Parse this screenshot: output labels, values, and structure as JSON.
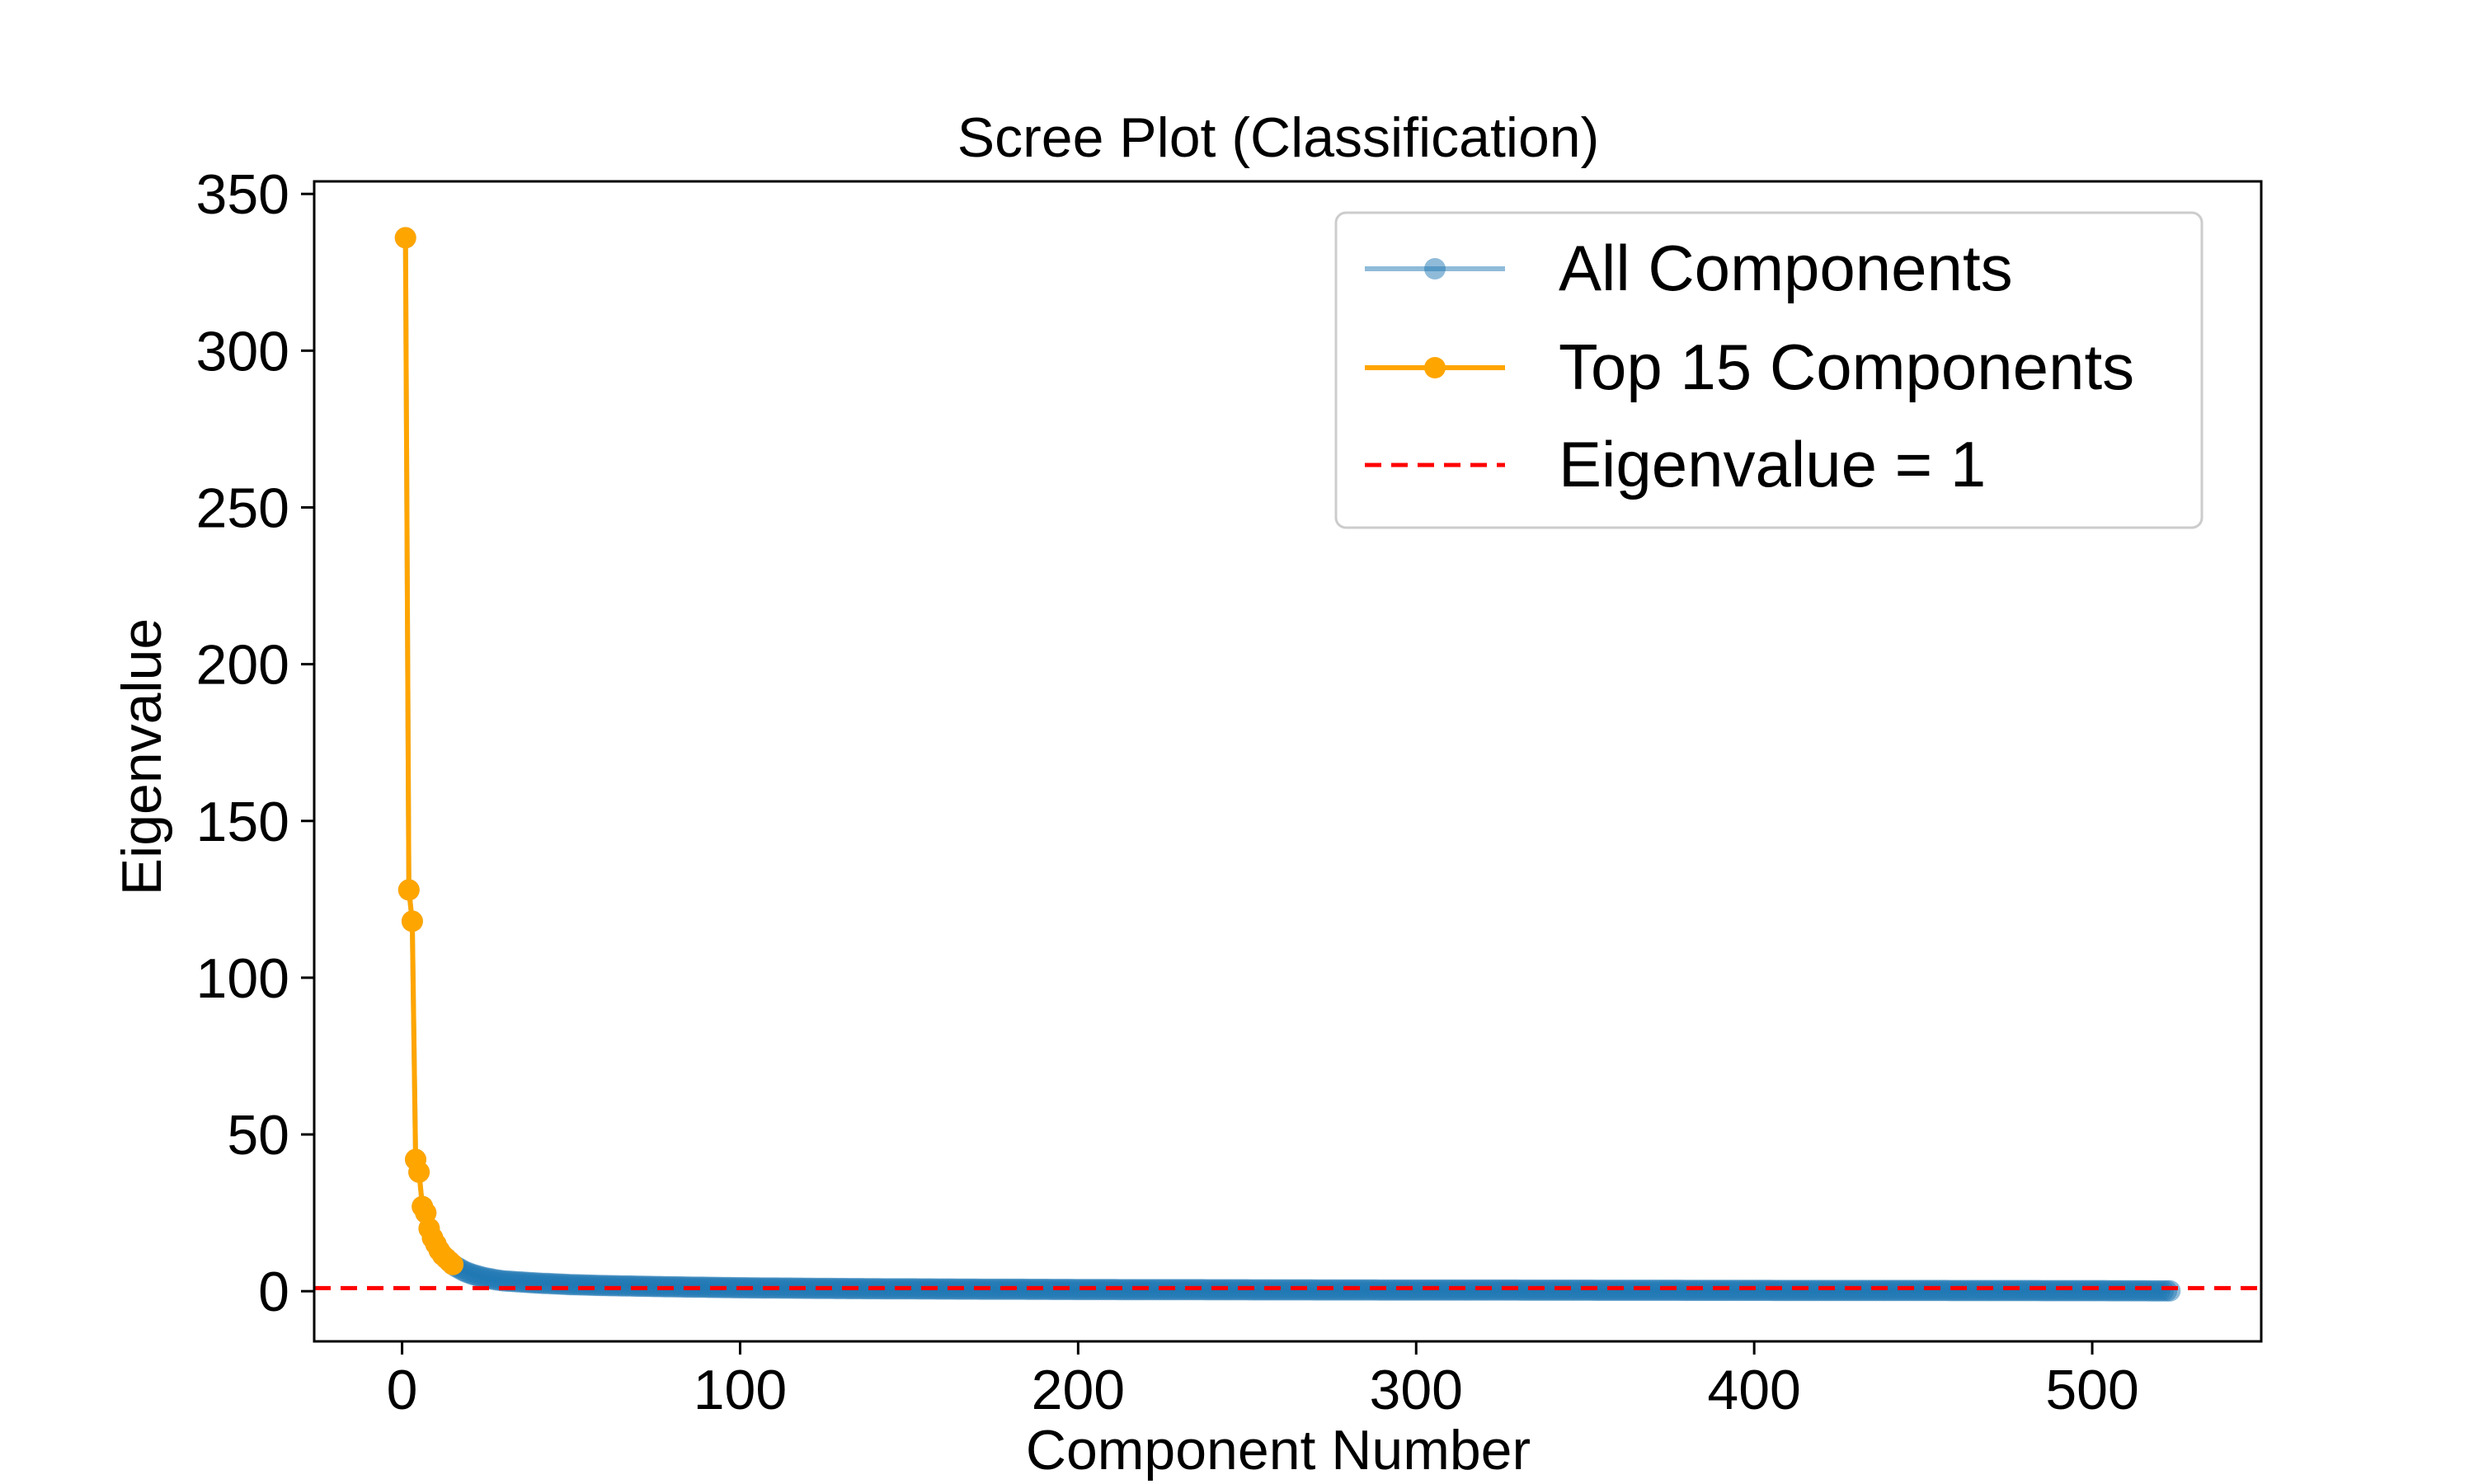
{
  "chart_data": {
    "type": "line",
    "title": "Scree Plot (Classification)",
    "xlabel": "Component Number",
    "ylabel": "Eigenvalue",
    "xlim": [
      -26,
      550
    ],
    "ylim": [
      -16,
      354
    ],
    "xticks": [
      0,
      100,
      200,
      300,
      400,
      500
    ],
    "yticks": [
      0,
      50,
      100,
      150,
      200,
      250,
      300,
      350
    ],
    "grid": false,
    "legend_position": "upper right",
    "colors": {
      "all_components": "#1f77b4",
      "top_components": "#ffa500",
      "threshold": "#ff0000"
    },
    "series": [
      {
        "name": "All Components",
        "style": "line-marker",
        "color": "#1f77b4",
        "n_points": 523,
        "x_start": 1,
        "values_head": [
          336,
          128,
          118,
          42,
          38,
          27,
          25,
          20,
          17,
          15,
          13,
          11.5,
          10.5,
          9.5,
          8.5,
          7.8,
          7.2,
          6.6,
          6.1,
          5.7,
          5.3,
          5.0,
          4.7,
          4.4,
          4.2,
          4.0,
          3.8,
          3.6,
          3.45,
          3.3
        ],
        "tail_curve": [
          [
            30,
            3.3
          ],
          [
            40,
            2.6
          ],
          [
            50,
            2.1
          ],
          [
            60,
            1.8
          ],
          [
            80,
            1.4
          ],
          [
            100,
            1.1
          ],
          [
            130,
            0.85
          ],
          [
            160,
            0.7
          ],
          [
            200,
            0.55
          ],
          [
            250,
            0.45
          ],
          [
            300,
            0.38
          ],
          [
            350,
            0.32
          ],
          [
            400,
            0.27
          ],
          [
            450,
            0.22
          ],
          [
            500,
            0.17
          ],
          [
            523,
            0.12
          ]
        ]
      },
      {
        "name": "Top 15 Components",
        "style": "line-marker",
        "color": "#ffa500",
        "x": [
          1,
          2,
          3,
          4,
          5,
          6,
          7,
          8,
          9,
          10,
          11,
          12,
          13,
          14,
          15
        ],
        "values": [
          336,
          128,
          118,
          42,
          38,
          27,
          25,
          20,
          17,
          15,
          13,
          11.5,
          10.5,
          9.5,
          8.5
        ]
      },
      {
        "name": "Eigenvalue = 1",
        "style": "dashed-hline",
        "color": "#ff0000",
        "y": 1
      }
    ]
  }
}
